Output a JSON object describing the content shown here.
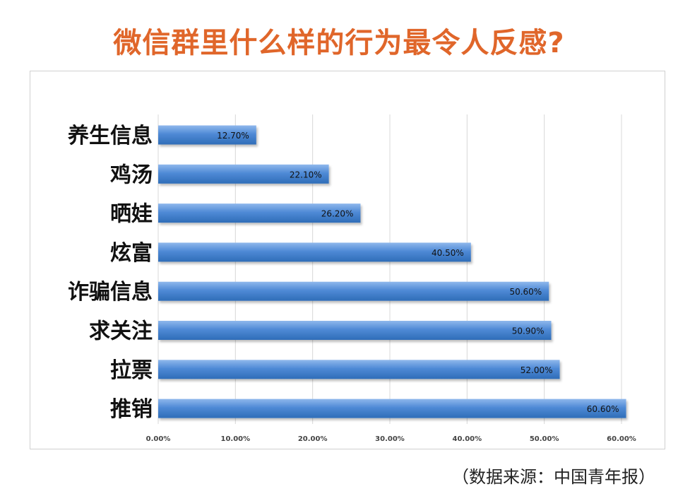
{
  "title": "微信群里什么样的行为最令人反感?",
  "source": "（数据来源：中国青年报）",
  "colors": {
    "title": "#e0662a",
    "bar": "#4f8ad6",
    "bar_dark": "#2f6db8",
    "grid": "#d8d8d8"
  },
  "chart_data": {
    "type": "bar",
    "orientation": "horizontal",
    "title": "微信群里什么样的行为最令人反感?",
    "xlabel": "",
    "ylabel": "",
    "categories": [
      "养生信息",
      "鸡汤",
      "晒娃",
      "炫富",
      "诈骗信息",
      "求关注",
      "拉票",
      "推销"
    ],
    "values": [
      12.7,
      22.1,
      26.2,
      40.5,
      50.6,
      50.9,
      52.0,
      60.6
    ],
    "value_labels": [
      "12.70%",
      "22.10%",
      "26.20%",
      "40.50%",
      "50.60%",
      "50.90%",
      "52.00%",
      "60.60%"
    ],
    "xlim": [
      0,
      60
    ],
    "x_ticks": [
      0,
      10,
      20,
      30,
      40,
      50,
      60
    ],
    "x_tick_labels": [
      "0.00%",
      "10.00%",
      "20.00%",
      "30.00%",
      "40.00%",
      "50.00%",
      "60.00%"
    ],
    "grid": true,
    "legend": "none"
  }
}
